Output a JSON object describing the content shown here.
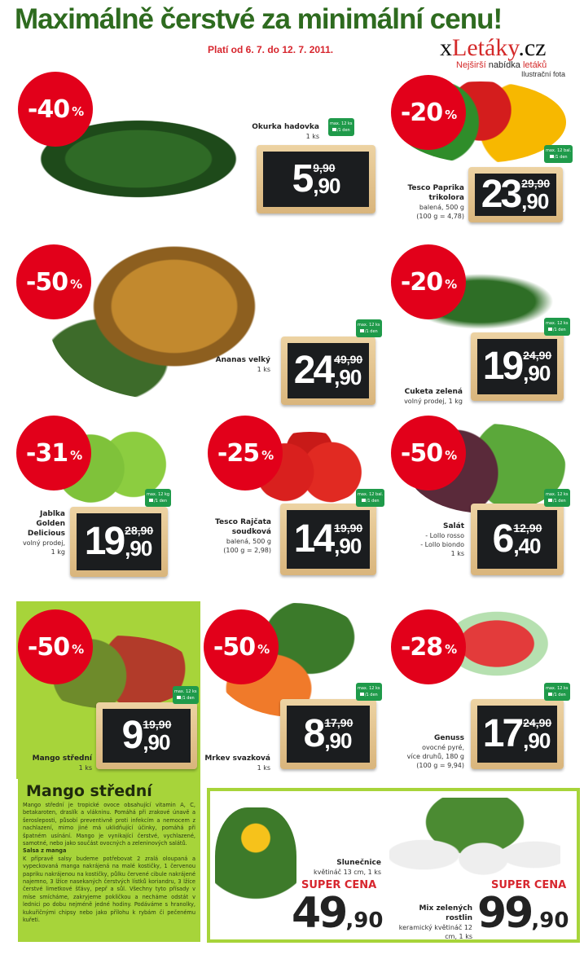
{
  "header": {
    "title": "Maximálně čerstvé za minimální cenu!",
    "validity": "Platí od 6. 7. do 12. 7. 2011.",
    "logo_x": "x",
    "logo_main": "Letáky",
    "logo_tld": ".cz",
    "tagline_a": "Nejširší ",
    "tagline_b": "nabídka",
    "tagline_c": " letáků",
    "illustration_note": "Ilustrační fota"
  },
  "colors": {
    "badge": "#e2001a",
    "brand_green": "#2e6b1f",
    "panel_green": "#a7d43a",
    "limit_green": "#1f9a4a"
  },
  "products": [
    {
      "name": "Okurka hadovka",
      "details": [
        "1 ks"
      ],
      "discount": "-40",
      "price_main": "5",
      "price_cents": ",90",
      "old_price": "9,90",
      "limit_qty": "max. 12 ks",
      "limit_period": "/1 den",
      "image": "cucumber"
    },
    {
      "name": "Tesco Paprika trikolora",
      "details": [
        "balená, 500 g",
        "(100 g = 4,78)"
      ],
      "discount": "-20",
      "price_main": "23",
      "price_cents": ",90",
      "old_price": "29,90",
      "limit_qty": "max. 12 bal.",
      "limit_period": "/1 den",
      "image": "peppers"
    },
    {
      "name": "Ananas velký",
      "details": [
        "1 ks"
      ],
      "discount": "-50",
      "price_main": "24",
      "price_cents": ",90",
      "old_price": "49,90",
      "limit_qty": "max. 12 ks",
      "limit_period": "/1 den",
      "image": "pineapple"
    },
    {
      "name": "Cuketa zelená",
      "details": [
        "volný prodej, 1 kg"
      ],
      "discount": "-20",
      "price_main": "19",
      "price_cents": ",90",
      "old_price": "24,90",
      "limit_qty": "max. 12 ks",
      "limit_period": "/1 den",
      "image": "zucchini"
    },
    {
      "name": "Jablka Golden Delicious",
      "details": [
        "volný prodej,",
        "1 kg"
      ],
      "discount": "-31",
      "price_main": "19",
      "price_cents": ",90",
      "old_price": "28,90",
      "limit_qty": "max. 12 kg",
      "limit_period": "/1 den",
      "image": "apples"
    },
    {
      "name": "Tesco Rajčata soudková",
      "details": [
        "balená, 500 g",
        "(100 g = 2,98)"
      ],
      "discount": "-25",
      "price_main": "14",
      "price_cents": ",90",
      "old_price": "19,90",
      "limit_qty": "max. 12 bal.",
      "limit_period": "/1 den",
      "image": "tomatoes"
    },
    {
      "name": "Salát",
      "details": [
        "- Lollo rosso",
        "- Lollo biondo",
        "1 ks"
      ],
      "discount": "-50",
      "price_main": "6",
      "price_cents": ",40",
      "old_price": "12,90",
      "limit_qty": "max. 12 ks",
      "limit_period": "/1 den",
      "image": "lettuce"
    },
    {
      "name": "Mango střední",
      "details": [
        "1 ks"
      ],
      "discount": "-50",
      "price_main": "9",
      "price_cents": ",90",
      "old_price": "19,90",
      "limit_qty": "max. 12 ks",
      "limit_period": "/1 den",
      "image": "mango"
    },
    {
      "name": "Mrkev svazková",
      "details": [
        "1 ks"
      ],
      "discount": "-50",
      "price_main": "8",
      "price_cents": ",90",
      "old_price": "17,90",
      "limit_qty": "max. 12 ks",
      "limit_period": "/1 den",
      "image": "carrots"
    },
    {
      "name": "Genuss",
      "details": [
        "ovocné pyré,",
        "více druhů, 180 g",
        "(100 g = 9,94)"
      ],
      "discount": "-28",
      "price_main": "17",
      "price_cents": ",90",
      "old_price": "24,90",
      "limit_qty": "max. 12 ks",
      "limit_period": "/1 den",
      "image": "fruit-puree"
    }
  ],
  "percent_sign": "%",
  "mango_info": {
    "title": "Mango střední",
    "text": "Mango střední je tropické ovoce obsahující vitamin A, C, betakaroten, draslík a vlákninu. Pomáhá při zrakové únavě a šerosleposti, působí preventivně proti infekcím a nemocem z nachlazení, mimo jiné má uklidňující účinky, pomáhá při špatném usínání. Mango je vynikající čerstvé, vychlazené, samotné, nebo jako součást ovocných a zeleninových salátů.",
    "recipe_title": "Salsa z manga",
    "recipe_text": "K přípravě salsy budeme potřebovat 2 zralá oloupaná a vypeckovaná manga nakrájená na malé kostičky, 1 červenou papriku nakrájenou na kostičky, půlku červené cibule nakrájené najemno, 3 lžíce nasekaných čerstvých lístků koriandru, 3 lžíce čerstvé limetkové šťávy, pepř a sůl. Všechny tyto přísady v míse smícháme, zakryjeme pokličkou a necháme odstát v lednici po dobu nejméně jedné hodiny. Podáváme s hranolky, kukuřičnými chipsy nebo jako přílohu k rybám či pečenému kuřeti."
  },
  "plants": [
    {
      "name": "Slunečnice",
      "details": "květináč 13 cm, 1 ks",
      "label": "SUPER CENA",
      "price_main": "49",
      "price_cents": ",90"
    },
    {
      "name": "Mix zelených rostlin",
      "details": "keramický květináč 12 cm, 1 ks",
      "label": "SUPER CENA",
      "price_main": "99",
      "price_cents": ",90"
    }
  ]
}
